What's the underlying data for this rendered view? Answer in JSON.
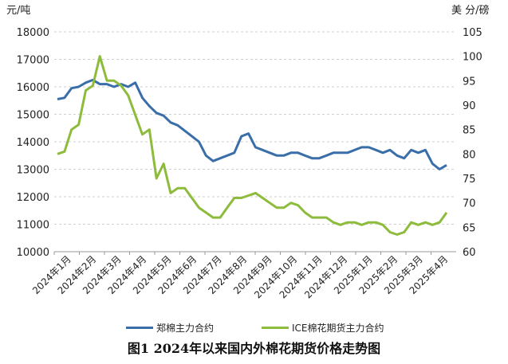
{
  "chart_data": {
    "type": "line",
    "title": "图1 2024年以来国内外棉花期货价格走势图",
    "left_unit": "元/吨",
    "right_unit": "美 分/磅",
    "left_axis": {
      "ylim": [
        10000,
        18000
      ],
      "ticks": [
        "10000",
        "11000",
        "12000",
        "13000",
        "14000",
        "15000",
        "16000",
        "17000",
        "18000"
      ]
    },
    "right_axis": {
      "ylim": [
        60,
        105
      ],
      "ticks": [
        "60",
        "65",
        "70",
        "75",
        "80",
        "85",
        "90",
        "95",
        "100",
        "105"
      ]
    },
    "x_labels": [
      "2024年1月",
      "2024年2月",
      "2024年3月",
      "2024年4月",
      "2024年5月",
      "2024年6月",
      "2024年7月",
      "2024年8月",
      "2024年9月",
      "2024年10月",
      "2024年11月",
      "2024年12月",
      "2025年1月",
      "2025年2月",
      "2025年3月",
      "2025年4月"
    ],
    "grid": true,
    "legend_position": "bottom",
    "series": [
      {
        "name": "郑棉主力合约",
        "axis": "left",
        "color": "#3a6ea8",
        "values": [
          15550,
          15600,
          15950,
          16000,
          16150,
          16250,
          16100,
          16100,
          16000,
          16100,
          16000,
          16150,
          15600,
          15300,
          15050,
          14950,
          14700,
          14600,
          14400,
          14200,
          14000,
          13500,
          13300,
          13400,
          13500,
          13600,
          14200,
          14300,
          13800,
          13700,
          13600,
          13500,
          13500,
          13600,
          13600,
          13500,
          13400,
          13400,
          13500,
          13600,
          13600,
          13600,
          13700,
          13800,
          13800,
          13700,
          13600,
          13700,
          13500,
          13400,
          13700,
          13600,
          13700,
          13200,
          13000,
          13150
        ]
      },
      {
        "name": "ICE棉花期货主力合约",
        "axis": "right",
        "color": "#8dbb3c",
        "values": [
          80,
          80.5,
          85,
          86,
          93,
          94,
          100,
          95,
          95,
          94,
          92,
          88,
          84,
          85,
          75,
          78,
          72,
          73,
          73,
          71,
          69,
          68,
          67,
          67,
          69,
          71,
          71,
          71.5,
          72,
          71,
          70,
          69,
          69,
          70,
          69.5,
          68,
          67,
          67,
          67,
          66,
          65.5,
          66,
          66,
          65.5,
          66,
          66,
          65.5,
          64,
          63.5,
          64,
          66,
          65.5,
          66,
          65.5,
          66,
          68
        ]
      }
    ]
  }
}
